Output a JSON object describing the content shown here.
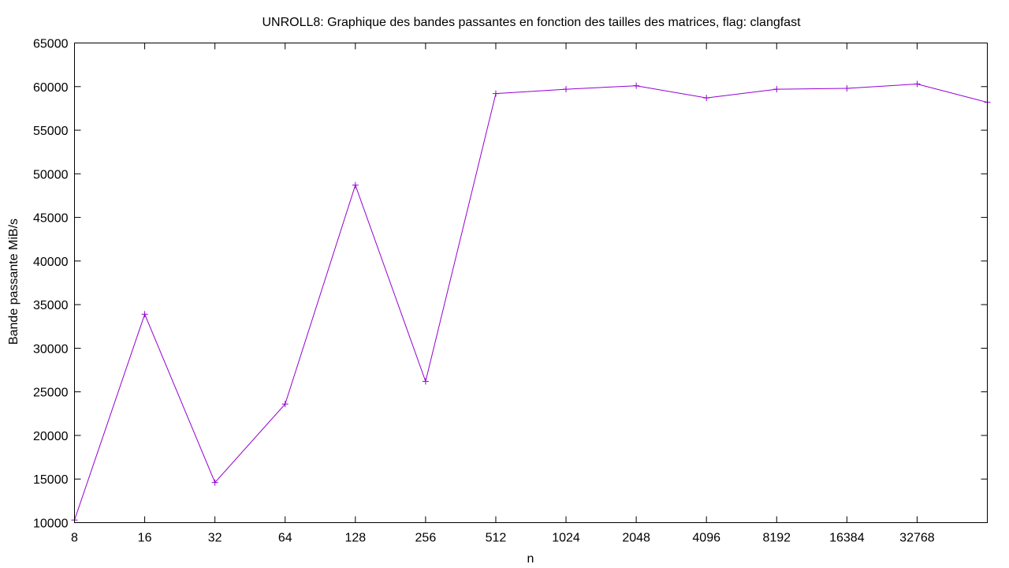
{
  "chart_data": {
    "type": "line",
    "title": "UNROLL8: Graphique des bandes passantes en fonction des tailles des matrices, flag: clangfast",
    "xlabel": "n",
    "ylabel": "Bande passante MiB/s",
    "x_scale": "log2",
    "x_ticks": [
      8,
      16,
      32,
      64,
      128,
      256,
      512,
      1024,
      2048,
      4096,
      8192,
      16384,
      32768
    ],
    "x_tick_labels": [
      "8",
      "16",
      "32",
      "64",
      "128",
      "256",
      "512",
      "1024",
      "2048",
      "4096",
      "8192",
      "16384",
      "32768"
    ],
    "xlim": [
      8,
      65536
    ],
    "ylim": [
      10000,
      65000
    ],
    "y_ticks": [
      10000,
      15000,
      20000,
      25000,
      30000,
      35000,
      40000,
      45000,
      50000,
      55000,
      60000,
      65000
    ],
    "y_tick_labels": [
      "10000",
      "15000",
      "20000",
      "25000",
      "30000",
      "35000",
      "40000",
      "45000",
      "50000",
      "55000",
      "60000",
      "65000"
    ],
    "grid": false,
    "series": [
      {
        "color": "#9400d3",
        "marker": "plus",
        "x": [
          8,
          16,
          32,
          64,
          128,
          256,
          512,
          1024,
          2048,
          4096,
          8192,
          16384,
          32768,
          65536
        ],
        "y": [
          10300,
          33900,
          14600,
          23600,
          48700,
          26200,
          59200,
          59700,
          60100,
          58700,
          59700,
          59800,
          60300,
          58200
        ]
      }
    ]
  }
}
